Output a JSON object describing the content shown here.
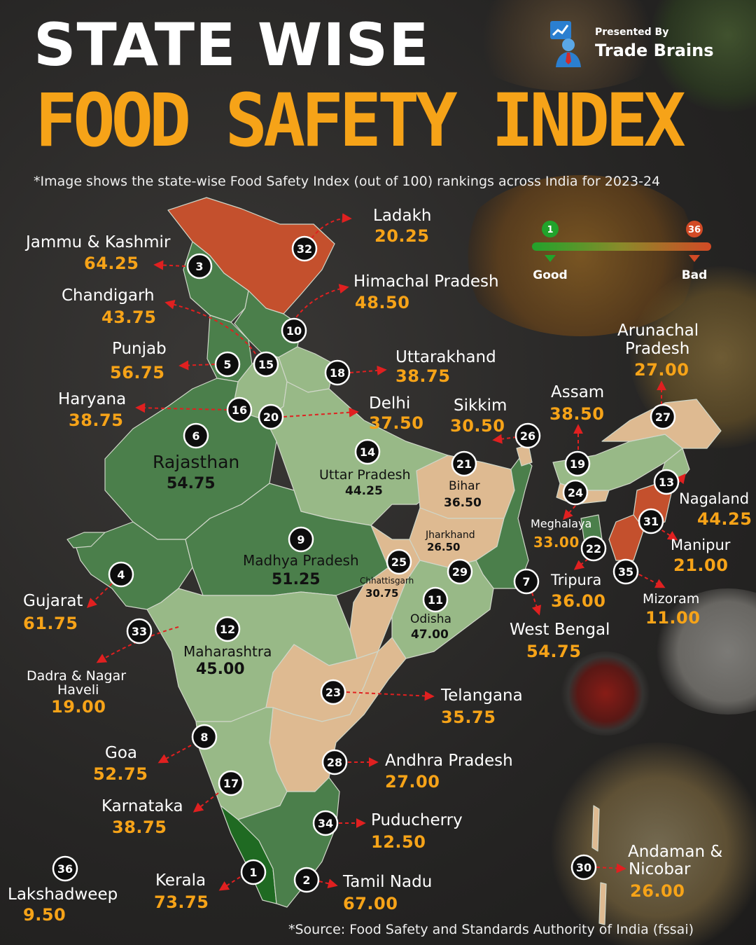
{
  "title_line1": "STATE WISE",
  "title_line2": "FOOD SAFETY INDEX",
  "subtitle": "*Image shows the state-wise Food Safety Index (out of 100) rankings across India for 2023-24",
  "brand": {
    "presented_by": "Presented By",
    "name": "Trade Brains",
    "logo_icon": "chart-presenter-icon"
  },
  "legend": {
    "low_rank": "1",
    "high_rank": "36",
    "good_label": "Good",
    "bad_label": "Bad",
    "good_color": "#21a32b",
    "bad_color": "#d24a25"
  },
  "source": "*Source: Food Safety and Standards Authority of India (fssai)",
  "colors": {
    "dark_green": "#4b7f4b",
    "mid_green": "#6f9a66",
    "light_green": "#98b987",
    "tan": "#deba91",
    "red": "#c4502d",
    "deep_green": "#1f6a22",
    "label_orange": "#f6a318"
  },
  "states": [
    {
      "rank": "1",
      "name": "Kerala",
      "score": "73.75"
    },
    {
      "rank": "2",
      "name": "Tamil Nadu",
      "score": "67.00"
    },
    {
      "rank": "3",
      "name": "Jammu & Kashmir",
      "score": "64.25"
    },
    {
      "rank": "4",
      "name": "Gujarat",
      "score": "61.75"
    },
    {
      "rank": "5",
      "name": "Punjab",
      "score": "56.75"
    },
    {
      "rank": "6",
      "name": "Rajasthan",
      "score": "54.75"
    },
    {
      "rank": "7",
      "name": "West Bengal",
      "score": "54.75"
    },
    {
      "rank": "8",
      "name": "Goa",
      "score": "52.75"
    },
    {
      "rank": "9",
      "name": "Madhya Pradesh",
      "score": "51.25"
    },
    {
      "rank": "10",
      "name": "Himachal Pradesh",
      "score": "48.50"
    },
    {
      "rank": "11",
      "name": "Odisha",
      "score": "47.00"
    },
    {
      "rank": "12",
      "name": "Maharashtra",
      "score": "45.00"
    },
    {
      "rank": "13",
      "name": "Nagaland",
      "score": "44.25"
    },
    {
      "rank": "14",
      "name": "Uttar Pradesh",
      "score": "44.25"
    },
    {
      "rank": "15",
      "name": "Chandigarh",
      "score": "43.75"
    },
    {
      "rank": "16",
      "name": "Haryana",
      "score": "38.75"
    },
    {
      "rank": "17",
      "name": "Karnataka",
      "score": "38.75"
    },
    {
      "rank": "18",
      "name": "Uttarakhand",
      "score": "38.75"
    },
    {
      "rank": "19",
      "name": "Assam",
      "score": "38.50"
    },
    {
      "rank": "20",
      "name": "Delhi",
      "score": "37.50"
    },
    {
      "rank": "21",
      "name": "Bihar",
      "score": "36.50"
    },
    {
      "rank": "22",
      "name": "Tripura",
      "score": "36.00"
    },
    {
      "rank": "23",
      "name": "Telangana",
      "score": "35.75"
    },
    {
      "rank": "24",
      "name": "Meghalaya",
      "score": "33.00"
    },
    {
      "rank": "25",
      "name": "Chhattisgarh",
      "score": "30.75"
    },
    {
      "rank": "26",
      "name": "Sikkim",
      "score": "30.50"
    },
    {
      "rank": "27",
      "name": "Arunachal Pradesh",
      "name_line1": "Arunachal",
      "name_line2": "Pradesh",
      "score": "27.00"
    },
    {
      "rank": "28",
      "name": "Andhra Pradesh",
      "score": "27.00"
    },
    {
      "rank": "29",
      "name": "Jharkhand",
      "score": "26.50"
    },
    {
      "rank": "30",
      "name": "Andaman & Nicobar",
      "name_line1": "Andaman &",
      "name_line2": "Nicobar",
      "score": "26.00"
    },
    {
      "rank": "31",
      "name": "Manipur",
      "score": "21.00"
    },
    {
      "rank": "32",
      "name": "Ladakh",
      "score": "20.25"
    },
    {
      "rank": "33",
      "name": "Dadra & Nagar Haveli",
      "name_line1": "Dadra & Nagar",
      "name_line2": "Haveli",
      "score": "19.00"
    },
    {
      "rank": "34",
      "name": "Puducherry",
      "score": "12.50"
    },
    {
      "rank": "35",
      "name": "Mizoram",
      "score": "11.00"
    },
    {
      "rank": "36",
      "name": "Lakshadweep",
      "score": "9.50"
    }
  ]
}
